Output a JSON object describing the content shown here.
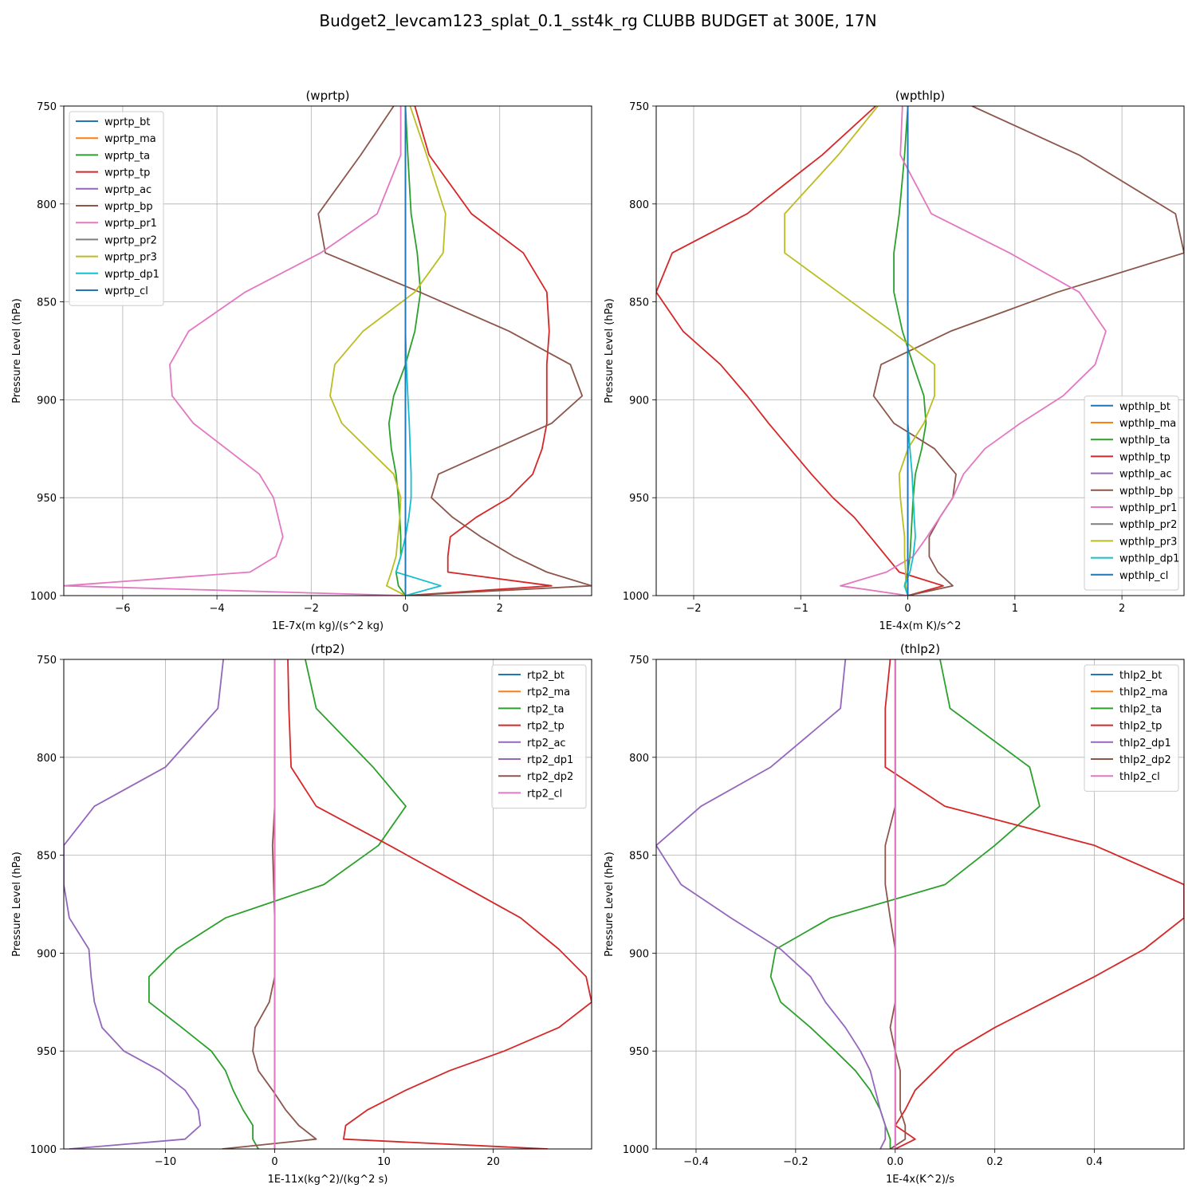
{
  "suptitle": "Budget2_levcam123_splat_0.1_sst4k_rg CLUBB BUDGET at 300E, 17N",
  "colors": [
    "#1f77b4",
    "#ff7f0e",
    "#2ca02c",
    "#d62728",
    "#9467bd",
    "#8c564b",
    "#e377c2",
    "#7f7f7f",
    "#bcbd22",
    "#17becf"
  ],
  "levels": [
    750,
    775,
    805,
    825,
    845,
    865,
    882,
    898,
    912,
    925,
    938,
    950,
    960,
    970,
    980,
    988,
    995,
    1000
  ],
  "chart_data": [
    {
      "type": "line",
      "title": "(wprtp)",
      "xlabel": "1E-7x(m kg)/(s^2 kg)",
      "ylabel": "Pressure Level (hPa)",
      "xlim": [
        -7.25,
        3.95
      ],
      "ylim": [
        1000,
        750
      ],
      "xticks": [
        -6,
        -4,
        -2,
        0,
        2
      ],
      "xtick_labels": [
        "−6",
        "−4",
        "−2",
        "0",
        "2"
      ],
      "yticks": [
        750,
        800,
        850,
        900,
        950,
        1000
      ],
      "grid": true,
      "legend": "upper left",
      "series": [
        {
          "name": "wprtp_bt",
          "color_index": 0,
          "values": [
            0,
            0,
            0,
            0,
            0,
            0,
            0,
            0,
            0,
            0,
            0,
            0,
            0,
            0,
            0,
            0,
            0,
            0
          ]
        },
        {
          "name": "wprtp_ma",
          "color_index": 1,
          "values": [
            0,
            0,
            0,
            0,
            0,
            0,
            0,
            0,
            0,
            0,
            0,
            0,
            0,
            0,
            0,
            0,
            0,
            0
          ]
        },
        {
          "name": "wprtp_ta",
          "color_index": 2,
          "values": [
            0.0,
            0.05,
            0.12,
            0.25,
            0.32,
            0.2,
            0.0,
            -0.25,
            -0.35,
            -0.3,
            -0.2,
            -0.15,
            -0.12,
            -0.1,
            -0.1,
            -0.2,
            -0.15,
            0.0
          ]
        },
        {
          "name": "wprtp_tp",
          "color_index": 3,
          "values": [
            0.2,
            0.5,
            1.4,
            2.5,
            3.0,
            3.05,
            3.0,
            3.0,
            3.0,
            2.9,
            2.7,
            2.2,
            1.5,
            0.95,
            0.9,
            0.9,
            3.1,
            0.0
          ]
        },
        {
          "name": "wprtp_ac",
          "color_index": 4,
          "values": [
            0,
            0,
            0,
            0,
            0,
            0,
            0,
            0,
            0,
            0,
            0,
            0,
            0,
            0,
            0,
            0,
            0,
            0
          ]
        },
        {
          "name": "wprtp_bp",
          "color_index": 5,
          "values": [
            -0.25,
            -0.95,
            -1.85,
            -1.7,
            0.3,
            2.2,
            3.5,
            3.75,
            3.1,
            1.9,
            0.7,
            0.55,
            1.0,
            1.6,
            2.3,
            3.0,
            3.95,
            0.0
          ]
        },
        {
          "name": "wprtp_pr1",
          "color_index": 6,
          "values": [
            -0.1,
            -0.1,
            -0.6,
            -1.8,
            -3.4,
            -4.6,
            -5.0,
            -4.95,
            -4.5,
            -3.8,
            -3.1,
            -2.8,
            -2.7,
            -2.6,
            -2.75,
            -3.3,
            -7.25,
            0.0
          ]
        },
        {
          "name": "wprtp_pr2",
          "color_index": 7,
          "values": [
            0,
            0,
            0,
            0,
            0,
            0,
            0,
            0,
            0,
            0,
            0,
            0,
            0,
            0,
            0,
            0,
            0,
            0
          ]
        },
        {
          "name": "wprtp_pr3",
          "color_index": 8,
          "values": [
            0.1,
            0.45,
            0.85,
            0.8,
            0.2,
            -0.9,
            -1.5,
            -1.6,
            -1.35,
            -0.8,
            -0.25,
            -0.1,
            -0.12,
            -0.16,
            -0.2,
            -0.3,
            -0.4,
            0.0
          ]
        },
        {
          "name": "wprtp_dp1",
          "color_index": 9,
          "values": [
            0.0,
            0.0,
            0.0,
            0.0,
            0.0,
            0.0,
            0.02,
            0.05,
            0.08,
            0.1,
            0.12,
            0.12,
            0.07,
            0.0,
            -0.1,
            -0.2,
            0.75,
            0.0
          ]
        },
        {
          "name": "wprtp_cl",
          "color_index": 0,
          "values": [
            0,
            0,
            0,
            0,
            0,
            0,
            0,
            0,
            0,
            0,
            0,
            0,
            0,
            0,
            0,
            0,
            0,
            0
          ]
        }
      ]
    },
    {
      "type": "line",
      "title": "(wpthlp)",
      "xlabel": "1E-4x(m K)/s^2",
      "ylabel": "Pressure Level (hPa)",
      "xlim": [
        -2.35,
        2.58
      ],
      "ylim": [
        1000,
        750
      ],
      "xticks": [
        -2,
        -1,
        0,
        1,
        2
      ],
      "xtick_labels": [
        "−2",
        "−1",
        "0",
        "1",
        "2"
      ],
      "yticks": [
        750,
        800,
        850,
        900,
        950,
        1000
      ],
      "grid": true,
      "legend": "lower right",
      "series": [
        {
          "name": "wpthlp_bt",
          "color_index": 0,
          "values": [
            0,
            0,
            0,
            0,
            0,
            0,
            0,
            0,
            0,
            0,
            0,
            0,
            0,
            0,
            0,
            0,
            0,
            0
          ]
        },
        {
          "name": "wpthlp_ma",
          "color_index": 1,
          "values": [
            0,
            0,
            0,
            0,
            0,
            0,
            0,
            0,
            0,
            0,
            0,
            0,
            0,
            0,
            0,
            0,
            0,
            0
          ]
        },
        {
          "name": "wpthlp_ta",
          "color_index": 2,
          "values": [
            0.0,
            -0.03,
            -0.08,
            -0.13,
            -0.13,
            -0.05,
            0.05,
            0.15,
            0.17,
            0.13,
            0.07,
            0.05,
            0.04,
            0.03,
            0.02,
            0.0,
            -0.03,
            0.0
          ]
        },
        {
          "name": "wpthlp_tp",
          "color_index": 3,
          "values": [
            -0.3,
            -0.8,
            -1.5,
            -2.2,
            -2.35,
            -2.1,
            -1.75,
            -1.5,
            -1.3,
            -1.1,
            -0.9,
            -0.7,
            -0.5,
            -0.35,
            -0.2,
            -0.08,
            0.33,
            0.0
          ]
        },
        {
          "name": "wpthlp_ac",
          "color_index": 4,
          "values": [
            0,
            0,
            0,
            0,
            0,
            0,
            0,
            0,
            0,
            0,
            0,
            0,
            0,
            0,
            0,
            0,
            0,
            0
          ]
        },
        {
          "name": "wpthlp_bp",
          "color_index": 5,
          "values": [
            0.6,
            1.6,
            2.5,
            2.58,
            1.4,
            0.4,
            -0.25,
            -0.32,
            -0.13,
            0.25,
            0.45,
            0.42,
            0.3,
            0.2,
            0.2,
            0.28,
            0.42,
            0.0
          ]
        },
        {
          "name": "wpthlp_pr1",
          "color_index": 6,
          "values": [
            -0.05,
            -0.07,
            0.22,
            0.95,
            1.6,
            1.85,
            1.75,
            1.45,
            1.05,
            0.72,
            0.52,
            0.42,
            0.3,
            0.18,
            0.05,
            -0.2,
            -0.63,
            0.0
          ]
        },
        {
          "name": "wpthlp_pr2",
          "color_index": 7,
          "values": [
            0,
            0,
            0,
            0,
            0,
            0,
            0,
            0,
            0,
            0,
            0,
            0,
            0,
            0,
            0,
            0,
            0,
            0
          ]
        },
        {
          "name": "wpthlp_pr3",
          "color_index": 8,
          "values": [
            -0.28,
            -0.65,
            -1.15,
            -1.15,
            -0.65,
            -0.15,
            0.25,
            0.25,
            0.15,
            0.0,
            -0.08,
            -0.07,
            -0.05,
            -0.03,
            -0.03,
            -0.02,
            -0.02,
            0.0
          ]
        },
        {
          "name": "wpthlp_dp1",
          "color_index": 9,
          "values": [
            0.0,
            0.0,
            0.0,
            0.0,
            0.0,
            0.0,
            0.0,
            0.0,
            0.0,
            0.02,
            0.04,
            0.05,
            0.06,
            0.07,
            0.05,
            0.02,
            -0.03,
            0.0
          ]
        },
        {
          "name": "wpthlp_cl",
          "color_index": 0,
          "values": [
            0,
            0,
            0,
            0,
            0,
            0,
            0,
            0,
            0,
            0,
            0,
            0,
            0,
            0,
            0,
            0,
            0,
            0
          ]
        }
      ]
    },
    {
      "type": "line",
      "title": "(rtp2)",
      "xlabel": "1E-11x(kg^2)/(kg^2 s)",
      "ylabel": "Pressure Level (hPa)",
      "xlim": [
        -19.3,
        29.0
      ],
      "ylim": [
        1000,
        750
      ],
      "xticks": [
        -10,
        0,
        10,
        20
      ],
      "xtick_labels": [
        "−10",
        "0",
        "10",
        "20"
      ],
      "yticks": [
        750,
        800,
        850,
        900,
        950,
        1000
      ],
      "grid": true,
      "legend": "upper right",
      "series": [
        {
          "name": "rtp2_bt",
          "color_index": 0,
          "values": [
            0,
            0,
            0,
            0,
            0,
            0,
            0,
            0,
            0,
            0,
            0,
            0,
            0,
            0,
            0,
            0,
            0,
            0
          ]
        },
        {
          "name": "rtp2_ma",
          "color_index": 1,
          "values": [
            0,
            0,
            0,
            0,
            0,
            0,
            0,
            0,
            0,
            0,
            0,
            0,
            0,
            0,
            0,
            0,
            0,
            0
          ]
        },
        {
          "name": "rtp2_ta",
          "color_index": 2,
          "values": [
            2.8,
            3.8,
            9.0,
            12.0,
            9.5,
            4.5,
            -4.5,
            -9.0,
            -11.5,
            -11.5,
            -8.5,
            -5.8,
            -4.5,
            -3.8,
            -2.9,
            -2.0,
            -2.0,
            -1.5
          ]
        },
        {
          "name": "rtp2_tp",
          "color_index": 3,
          "values": [
            1.2,
            1.3,
            1.5,
            3.8,
            10.5,
            17.0,
            22.5,
            26.0,
            28.5,
            29.0,
            26.0,
            21.0,
            16.0,
            12.0,
            8.5,
            6.5,
            6.3,
            25.0
          ]
        },
        {
          "name": "rtp2_ac",
          "color_index": 4,
          "values": [
            0,
            0,
            0,
            0,
            0,
            0,
            0,
            0,
            0,
            0,
            0,
            0,
            0,
            0,
            0,
            0,
            0,
            0
          ]
        },
        {
          "name": "rtp2_dp1",
          "color_index": 4,
          "values": [
            -4.7,
            -5.2,
            -10.0,
            -16.5,
            -19.3,
            -19.3,
            -18.8,
            -17.0,
            -16.8,
            -16.5,
            -15.8,
            -13.8,
            -10.5,
            -8.2,
            -7.0,
            -6.8,
            -8.2,
            -18.8
          ]
        },
        {
          "name": "rtp2_dp2",
          "color_index": 5,
          "values": [
            0.0,
            0.0,
            0.0,
            0.0,
            -0.2,
            -0.1,
            0.0,
            0.0,
            0.0,
            -0.5,
            -1.8,
            -2.0,
            -1.5,
            -0.2,
            1.0,
            2.2,
            3.8,
            -4.8
          ]
        },
        {
          "name": "rtp2_cl",
          "color_index": 6,
          "values": [
            0,
            0,
            0,
            0,
            0,
            0,
            0,
            0,
            0,
            0,
            0,
            0,
            0,
            0,
            0,
            0,
            0,
            0
          ]
        }
      ]
    },
    {
      "type": "line",
      "title": "(thlp2)",
      "xlabel": "1E-4x(K^2)/s",
      "ylabel": "Pressure Level (hPa)",
      "xlim": [
        -0.48,
        0.58
      ],
      "ylim": [
        1000,
        750
      ],
      "xticks": [
        -0.4,
        -0.2,
        0.0,
        0.2,
        0.4
      ],
      "xtick_labels": [
        "−0.4",
        "−0.2",
        "0.0",
        "0.2",
        "0.4"
      ],
      "yticks": [
        750,
        800,
        850,
        900,
        950,
        1000
      ],
      "grid": true,
      "legend": "upper right",
      "series": [
        {
          "name": "thlp2_bt",
          "color_index": 0,
          "values": [
            0,
            0,
            0,
            0,
            0,
            0,
            0,
            0,
            0,
            0,
            0,
            0,
            0,
            0,
            0,
            0,
            0,
            0
          ]
        },
        {
          "name": "thlp2_ma",
          "color_index": 1,
          "values": [
            0,
            0,
            0,
            0,
            0,
            0,
            0,
            0,
            0,
            0,
            0,
            0,
            0,
            0,
            0,
            0,
            0,
            0
          ]
        },
        {
          "name": "thlp2_ta",
          "color_index": 2,
          "values": [
            0.09,
            0.11,
            0.27,
            0.29,
            0.2,
            0.1,
            -0.13,
            -0.24,
            -0.25,
            -0.23,
            -0.17,
            -0.12,
            -0.08,
            -0.05,
            -0.03,
            -0.02,
            -0.01,
            -0.01
          ]
        },
        {
          "name": "thlp2_tp",
          "color_index": 3,
          "values": [
            -0.01,
            -0.02,
            -0.02,
            0.1,
            0.4,
            0.58,
            0.58,
            0.5,
            0.4,
            0.3,
            0.2,
            0.12,
            0.08,
            0.04,
            0.02,
            0.0,
            0.04,
            0.0
          ]
        },
        {
          "name": "thlp2_dp1",
          "color_index": 4,
          "values": [
            -0.1,
            -0.11,
            -0.25,
            -0.39,
            -0.48,
            -0.43,
            -0.33,
            -0.23,
            -0.17,
            -0.14,
            -0.1,
            -0.07,
            -0.05,
            -0.04,
            -0.03,
            -0.02,
            -0.02,
            -0.03
          ]
        },
        {
          "name": "thlp2_dp2",
          "color_index": 5,
          "values": [
            0.0,
            0.0,
            0.0,
            0.0,
            -0.02,
            -0.02,
            -0.01,
            0.0,
            0.0,
            0.0,
            -0.01,
            0.0,
            0.01,
            0.01,
            0.01,
            0.02,
            0.02,
            -0.01
          ]
        },
        {
          "name": "thlp2_cl",
          "color_index": 6,
          "values": [
            0,
            0,
            0,
            0,
            0,
            0,
            0,
            0,
            0,
            0,
            0,
            0,
            0,
            0,
            0,
            0,
            0,
            0
          ]
        }
      ]
    }
  ]
}
